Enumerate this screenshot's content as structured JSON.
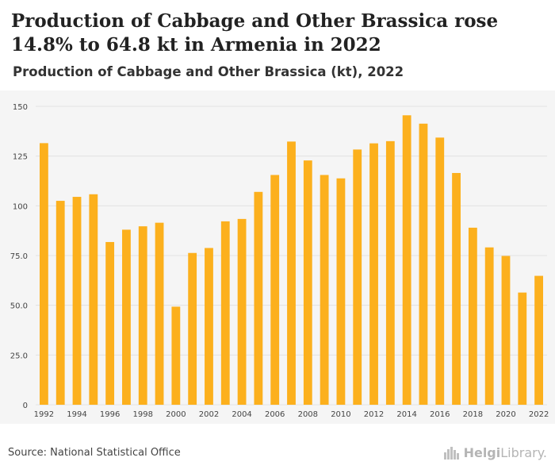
{
  "header": {
    "title": "Production of Cabbage and Other Brassica rose 14.8% to 64.8 kt in Armenia in 2022",
    "subtitle": "Production of Cabbage and Other Brassica (kt), 2022"
  },
  "footer": {
    "source": "Source: National Statistical Office",
    "brand_bold": "Helgi",
    "brand_rest": "Library."
  },
  "colors": {
    "bar": "#fcb01d",
    "grid": "#e2e2e2",
    "tick_text": "#444444",
    "plot_background": "#f5f5f5"
  },
  "chart_data": {
    "type": "bar",
    "categories": [
      "1992",
      "1993",
      "1994",
      "1995",
      "1996",
      "1997",
      "1998",
      "1999",
      "2000",
      "2001",
      "2002",
      "2003",
      "2004",
      "2005",
      "2006",
      "2007",
      "2008",
      "2009",
      "2010",
      "2011",
      "2012",
      "2013",
      "2014",
      "2015",
      "2016",
      "2017",
      "2018",
      "2019",
      "2020",
      "2021",
      "2022"
    ],
    "values": [
      131.5,
      102.5,
      104.5,
      105.8,
      81.8,
      88,
      89.7,
      91.5,
      49.3,
      76.3,
      78.8,
      92.2,
      93.4,
      107,
      115.5,
      132.3,
      122.8,
      115.5,
      113.8,
      128.3,
      131.4,
      132.5,
      145.5,
      141.3,
      134.3,
      116.5,
      89,
      79.1,
      74.8,
      56.4,
      64.8
    ],
    "x_tick_labels": [
      "1992",
      "1994",
      "1996",
      "1998",
      "2000",
      "2002",
      "2004",
      "2006",
      "2008",
      "2010",
      "2012",
      "2014",
      "2016",
      "2018",
      "2020",
      "2022"
    ],
    "y_ticks": [
      0,
      25,
      50,
      75,
      100,
      125,
      150
    ],
    "y_tick_labels": [
      "0",
      "25.0",
      "50.0",
      "75.0",
      "100",
      "125",
      "150"
    ],
    "ylim": [
      0,
      150
    ],
    "xlabel": "",
    "ylabel": "",
    "grid": true,
    "legend": "none"
  }
}
